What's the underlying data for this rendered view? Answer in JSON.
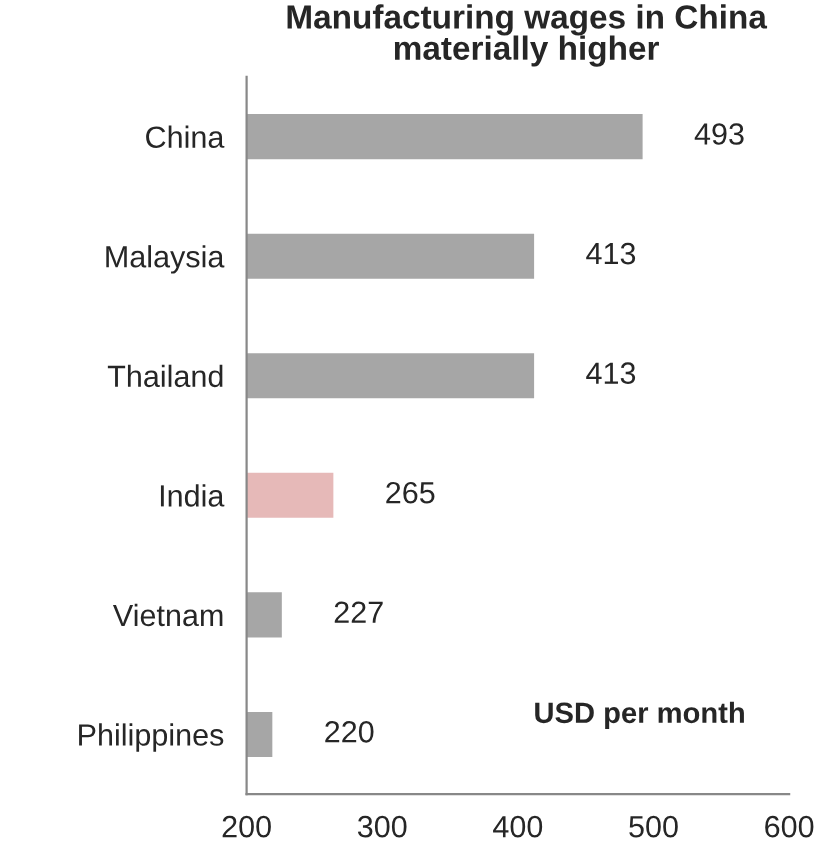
{
  "chart_data": {
    "type": "bar",
    "orientation": "horizontal",
    "title": "Manufacturing wages in China\nmaterially higher",
    "categories": [
      "China",
      "Malaysia",
      "Thailand",
      "India",
      "Vietnam",
      "Philippines"
    ],
    "values": [
      493,
      413,
      413,
      265,
      227,
      220
    ],
    "colors": [
      "#a6a6a6",
      "#a6a6a6",
      "#a6a6a6",
      "#e6b9b8",
      "#a6a6a6",
      "#a6a6a6"
    ],
    "xlim": [
      200,
      600
    ],
    "xticks": [
      200,
      300,
      400,
      500,
      600
    ],
    "data_labels": true,
    "grid": false,
    "legend": false,
    "annotations": [
      "USD per month"
    ]
  }
}
